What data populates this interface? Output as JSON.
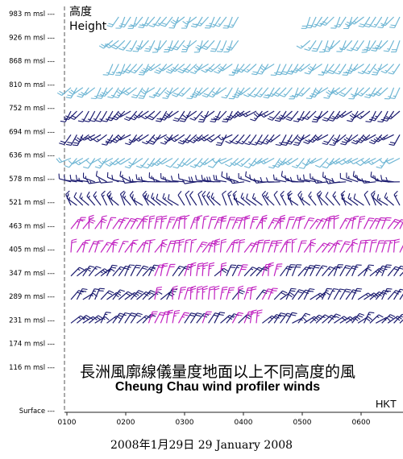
{
  "chart_data": {
    "type": "wind-barb time-height plot",
    "title_cn": "長洲風廓線儀量度地面以上不同高度的風",
    "title_en": "Cheung Chau wind profiler winds",
    "ylabel_cn": "高度",
    "ylabel_en": "Height",
    "station": "HKT",
    "date_text": "2008年1月29日   29 January 2008",
    "height_labels": [
      "983 m msl ---",
      "926 m msl ---",
      "868 m msl ---",
      "810 m msl ---",
      "752 m msl ---",
      "694 m msl ---",
      "636 m msl ---",
      "578 m msl ---",
      "521 m msl ---",
      "463 m msl ---",
      "405 m msl ---",
      "347 m msl ---",
      "289 m msl ---",
      "231 m msl ---",
      "174 m msl ---",
      "116 m msl ---",
      "Surface ---"
    ],
    "time_labels": [
      "0100",
      "0200",
      "0300",
      "0400",
      "0500",
      "0600"
    ],
    "colors": {
      "light": "#6fb6d4",
      "dark": "#1a1a6e",
      "magenta": "#c020c0",
      "axis": "#555555"
    },
    "levels": [
      {
        "height": "983 m msl",
        "color": "light",
        "direction": 215,
        "speed": 20
      },
      {
        "height": "926 m msl",
        "color": "light",
        "direction": 215,
        "speed": 20
      },
      {
        "height": "868 m msl",
        "color": "light",
        "direction": 220,
        "speed": 20
      },
      {
        "height": "810 m msl",
        "color": "light",
        "direction": 220,
        "speed": 20
      },
      {
        "height": "752 m msl",
        "color": "dark",
        "direction": 225,
        "speed": 20
      },
      {
        "height": "694 m msl",
        "color": "dark",
        "direction": 225,
        "speed": 20
      },
      {
        "height": "636 m msl",
        "color": "light",
        "direction": 230,
        "speed": 15
      },
      {
        "height": "578 m msl",
        "color": "dark",
        "direction": 280,
        "speed": 15
      },
      {
        "height": "521 m msl",
        "color": "dark",
        "direction": 320,
        "speed": 15
      },
      {
        "height": "463 m msl",
        "color": "magenta",
        "direction": 20,
        "speed": 20
      },
      {
        "height": "405 m msl",
        "color": "magenta",
        "direction": 20,
        "speed": 20
      },
      {
        "height": "347 m msl",
        "color": "dark",
        "direction": 40,
        "speed": 20
      },
      {
        "height": "289 m msl",
        "color": "dark",
        "direction": 40,
        "speed": 20
      },
      {
        "height": "231 m msl",
        "color": "dark",
        "direction": 45,
        "speed": 20
      }
    ],
    "grid": false
  }
}
